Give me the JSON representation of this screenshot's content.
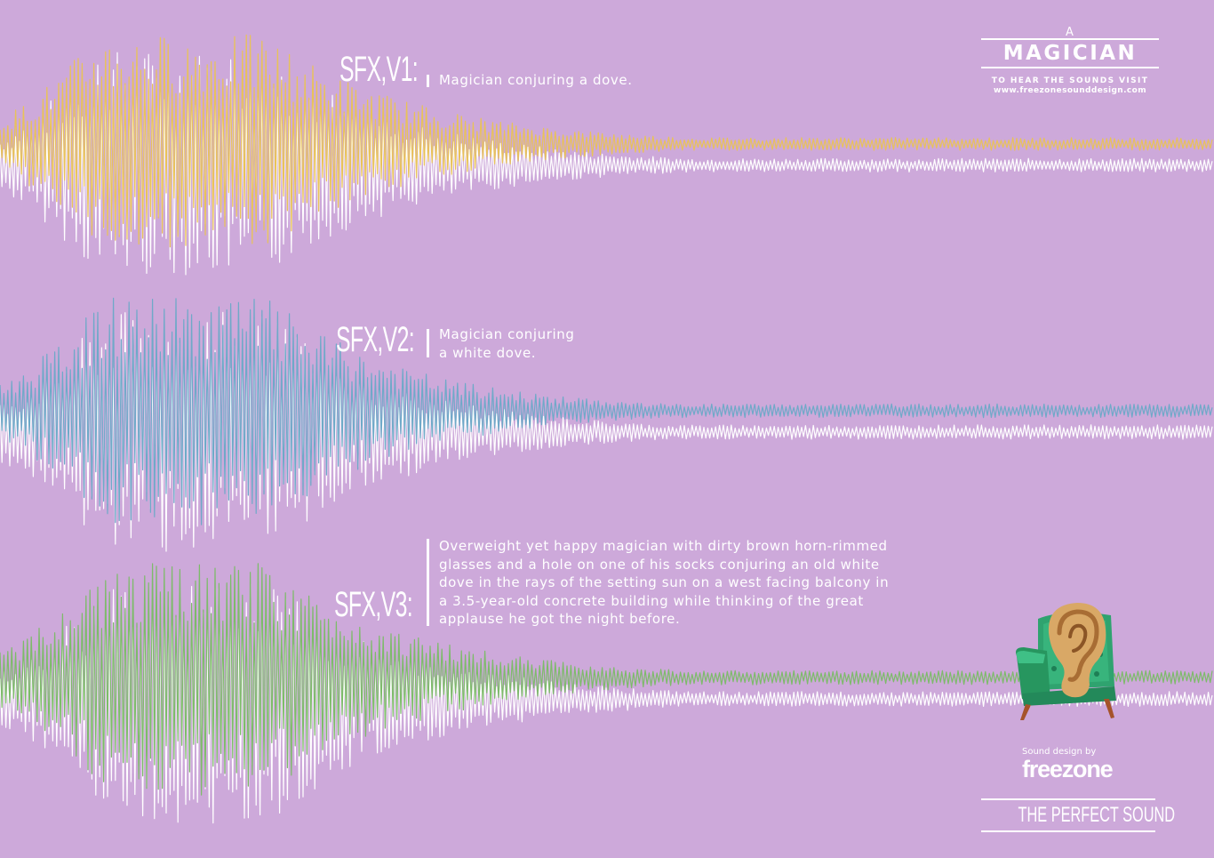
{
  "colors": {
    "background": "#cda9da",
    "wave_v1": "#e8c25a",
    "wave_v2": "#6fa9c8",
    "wave_v3": "#7dbb6a",
    "wave_echo": "#ffffff"
  },
  "badge": {
    "prefix": "A",
    "title": "MAGICIAN",
    "visit_text": "TO HEAR THE SOUNDS VISIT",
    "url": "www.freezonesounddesign.com"
  },
  "sections": [
    {
      "label": "SFX,V1:",
      "description_lines": [
        "Magician conjuring a dove."
      ]
    },
    {
      "label": "SFX,V2:",
      "description_lines": [
        "Magician conjuring",
        "a white dove."
      ]
    },
    {
      "label": "SFX,V3:",
      "description_lines": [
        "Overweight yet happy magician with dirty brown horn-rimmed",
        "glasses and a hole on one of his socks conjuring an old white",
        "dove in the rays of the setting sun on a west facing balcony in",
        "a 3.5-year-old concrete building while thinking of the great",
        "applause he got the night before."
      ]
    }
  ],
  "credit": {
    "small": "Sound design by",
    "brand": "freezone"
  },
  "tagline": "THE PERFECT SOUND",
  "icons": {
    "illustration": "ear-on-armchair-icon"
  }
}
